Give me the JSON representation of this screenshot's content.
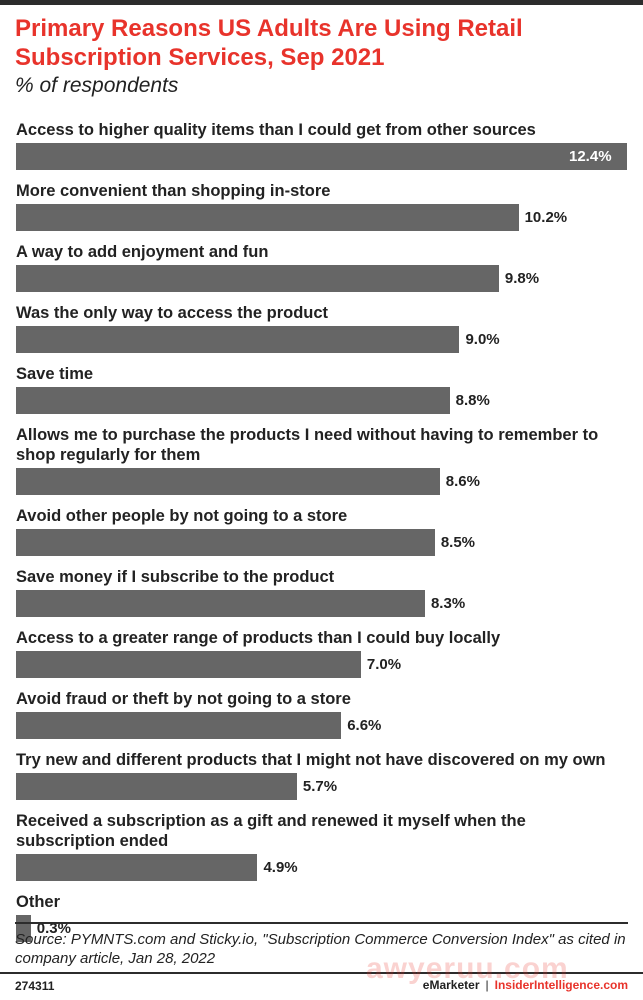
{
  "header": {
    "title": "Primary Reasons US Adults Are Using Retail Subscription Services, Sep 2021",
    "subtitle": "% of respondents"
  },
  "chart_data": {
    "type": "bar",
    "orientation": "horizontal",
    "title": "Primary Reasons US Adults Are Using Retail Subscription Services, Sep 2021",
    "subtitle": "% of respondents",
    "xlim": [
      0,
      12.4
    ],
    "grid": false,
    "legend": "none",
    "bar_color": "#666666",
    "categories": [
      "Access to higher quality items than I could get from other sources",
      "More convenient than shopping in-store",
      "A way to add enjoyment and fun",
      "Was the only way to access the product",
      "Save time",
      "Allows me to purchase the products I need without having to remember to shop regularly for them",
      "Avoid other people by not going to a store",
      "Save money if I subscribe to the product",
      "Access to a greater range of products than I could buy locally",
      "Avoid fraud or theft by not going to a store",
      "Try new and different products that I might not have discovered on my own",
      "Received a subscription as a gift and renewed it myself when the subscription ended",
      "Other"
    ],
    "values": [
      12.4,
      10.2,
      9.8,
      9.0,
      8.8,
      8.6,
      8.5,
      8.3,
      7.0,
      6.6,
      5.7,
      4.9,
      0.3
    ],
    "value_labels": [
      "12.4%",
      "10.2%",
      "9.8%",
      "9.0%",
      "8.8%",
      "8.6%",
      "8.5%",
      "8.3%",
      "7.0%",
      "6.6%",
      "5.7%",
      "4.9%",
      "0.3%"
    ]
  },
  "footer": {
    "source": "Source: PYMNTS.com and Sticky.io, \"Subscription Commerce Conversion Index\" as cited in company article, Jan 28, 2022",
    "chart_id": "274311",
    "brand_left": "eMarketer",
    "brand_sep": "|",
    "brand_right": "InsiderIntelligence.com",
    "watermark": "awyeruu.com"
  },
  "colors": {
    "title": "#e8332b",
    "bar": "#666666",
    "text": "#222222",
    "rule": "#2c2c2c",
    "accent": "#e8332b"
  }
}
